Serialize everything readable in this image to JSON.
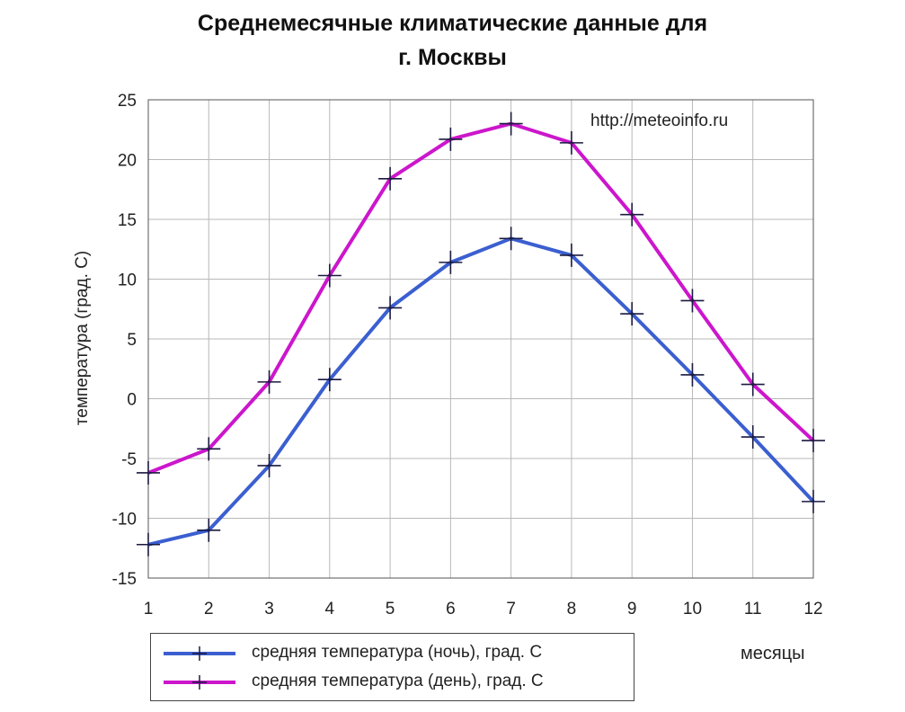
{
  "chart_data": {
    "type": "line",
    "title": "Среднемесячные климатические данные для г. Москвы",
    "title_lines": [
      "Среднемесячные климатические данные для",
      "г. Москвы"
    ],
    "source": "http://meteoinfo.ru",
    "xlabel": "месяцы",
    "ylabel": "температура (град. С)",
    "x": [
      1,
      2,
      3,
      4,
      5,
      6,
      7,
      8,
      9,
      10,
      11,
      12
    ],
    "x_tick_labels": [
      "1",
      "2",
      "3",
      "4",
      "5",
      "6",
      "7",
      "8",
      "9",
      "10",
      "11",
      "12"
    ],
    "y_ticks": [
      -15,
      -10,
      -5,
      0,
      5,
      10,
      15,
      20,
      25
    ],
    "y_tick_labels": [
      "-15",
      "-10",
      "-5",
      "0",
      "5",
      "10",
      "15",
      "20",
      "25"
    ],
    "ylim": [
      -15,
      25
    ],
    "xlim": [
      1,
      12
    ],
    "grid": true,
    "legend_position": "bottom",
    "series": [
      {
        "name": "средняя температура (ночь), град. С",
        "color": "#3b5fd0",
        "values": [
          -12.2,
          -11.0,
          -5.6,
          1.6,
          7.6,
          11.4,
          13.4,
          12.0,
          7.1,
          2.0,
          -3.2,
          -8.6
        ]
      },
      {
        "name": "средняя температура (день), град. С",
        "color": "#cc16cc",
        "values": [
          -6.2,
          -4.2,
          1.4,
          10.3,
          18.4,
          21.7,
          23.0,
          21.4,
          15.4,
          8.2,
          1.2,
          -3.5
        ]
      }
    ]
  }
}
